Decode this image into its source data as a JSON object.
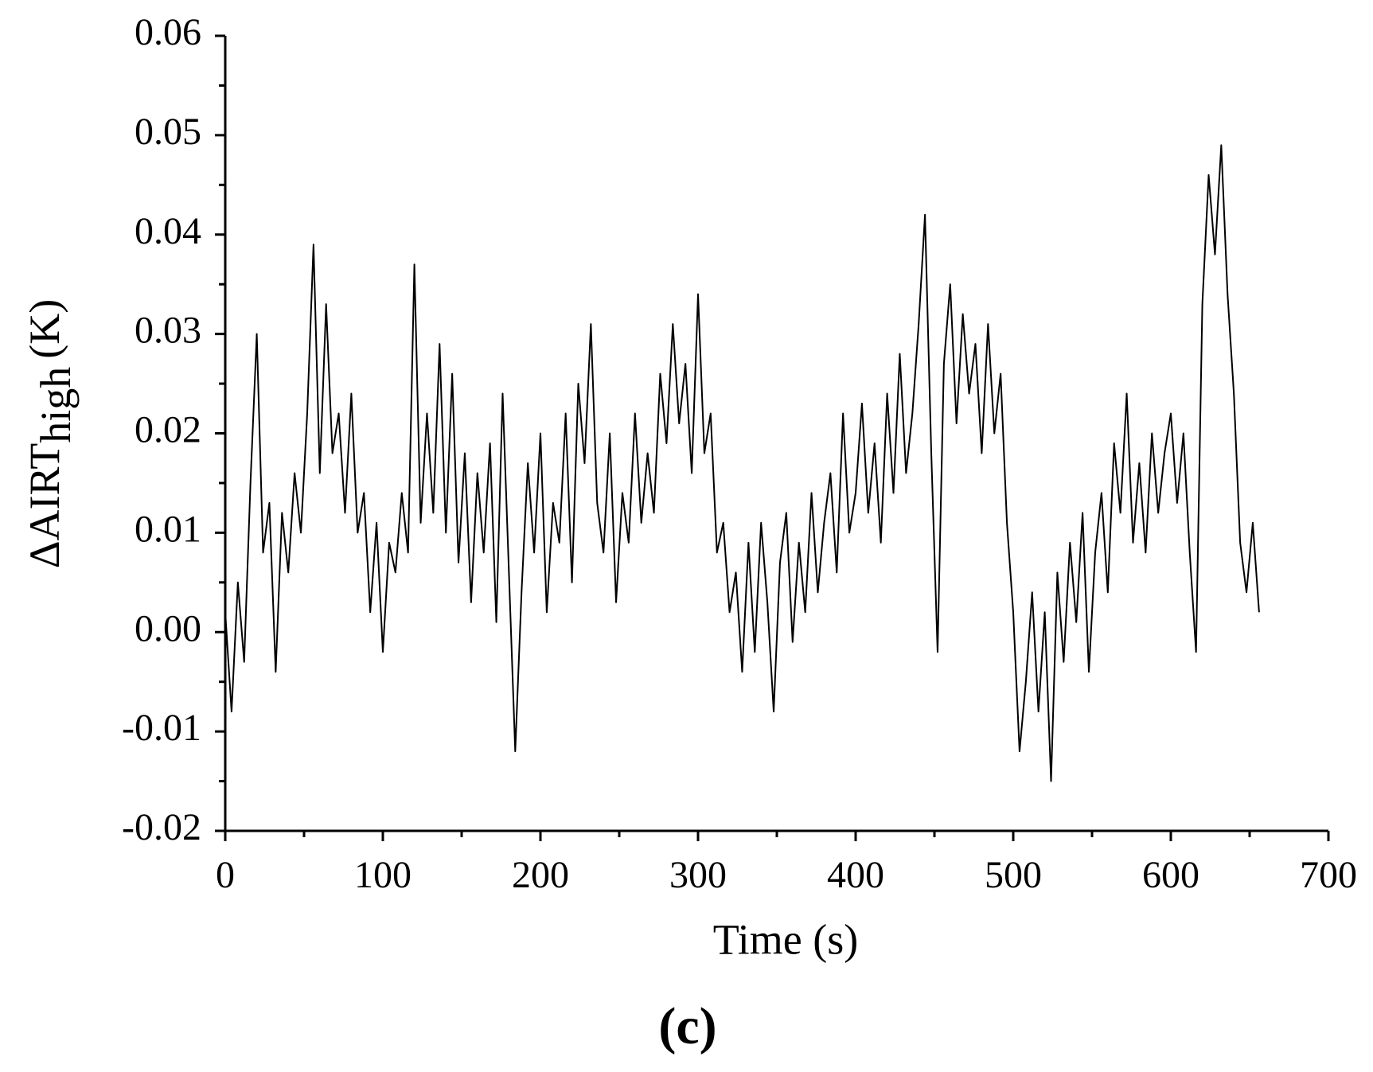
{
  "chart_data": {
    "type": "line",
    "xlabel": "Time (s)",
    "ylabel": "ΔAIRT",
    "ylabel_sub": "high",
    "ylabel_unit": "(K)",
    "caption": "(c)",
    "color": "#000000",
    "xlim": [
      0,
      700
    ],
    "xticks": [
      0,
      100,
      200,
      300,
      400,
      500,
      600,
      700
    ],
    "xminorticks": [
      50,
      150,
      250,
      350,
      450,
      550,
      650
    ],
    "ylim": [
      -0.02,
      0.06
    ],
    "yticks": [
      -0.02,
      -0.01,
      {
        "value": 0,
        "label": "0.00"
      },
      0.01,
      0.02,
      0.03,
      0.04,
      0.05,
      0.06
    ],
    "yminorticks": [
      -0.015,
      -0.005,
      0.005,
      0.015,
      0.025,
      0.035,
      0.045,
      0.055
    ],
    "x": [
      0,
      4,
      8,
      12,
      16,
      20,
      24,
      28,
      32,
      36,
      40,
      44,
      48,
      52,
      56,
      60,
      64,
      68,
      72,
      76,
      80,
      84,
      88,
      92,
      96,
      100,
      104,
      108,
      112,
      116,
      120,
      124,
      128,
      132,
      136,
      140,
      144,
      148,
      152,
      156,
      160,
      164,
      168,
      172,
      176,
      180,
      184,
      188,
      192,
      196,
      200,
      204,
      208,
      212,
      216,
      220,
      224,
      228,
      232,
      236,
      240,
      244,
      248,
      252,
      256,
      260,
      264,
      268,
      272,
      276,
      280,
      284,
      288,
      292,
      296,
      300,
      304,
      308,
      312,
      316,
      320,
      324,
      328,
      332,
      336,
      340,
      344,
      348,
      352,
      356,
      360,
      364,
      368,
      372,
      376,
      380,
      384,
      388,
      392,
      396,
      400,
      404,
      408,
      412,
      416,
      420,
      424,
      428,
      432,
      436,
      440,
      444,
      448,
      452,
      456,
      460,
      464,
      468,
      472,
      476,
      480,
      484,
      488,
      492,
      496,
      500,
      504,
      508,
      512,
      516,
      520,
      524,
      528,
      532,
      536,
      540,
      544,
      548,
      552,
      556,
      560,
      564,
      568,
      572,
      576,
      580,
      584,
      588,
      592,
      596,
      600,
      604,
      608,
      612,
      616,
      620,
      624,
      628,
      632,
      636,
      640,
      644,
      648,
      652,
      656
    ],
    "values": [
      0.002,
      -0.008,
      0.005,
      -0.003,
      0.015,
      0.03,
      0.008,
      0.013,
      -0.004,
      0.012,
      0.006,
      0.016,
      0.01,
      0.022,
      0.039,
      0.016,
      0.033,
      0.018,
      0.022,
      0.012,
      0.024,
      0.01,
      0.014,
      0.002,
      0.011,
      -0.002,
      0.009,
      0.006,
      0.014,
      0.008,
      0.037,
      0.011,
      0.022,
      0.012,
      0.029,
      0.01,
      0.026,
      0.007,
      0.018,
      0.003,
      0.016,
      0.008,
      0.019,
      0.001,
      0.024,
      0.006,
      -0.012,
      0.004,
      0.017,
      0.008,
      0.02,
      0.002,
      0.013,
      0.009,
      0.022,
      0.005,
      0.025,
      0.017,
      0.031,
      0.013,
      0.008,
      0.02,
      0.003,
      0.014,
      0.009,
      0.022,
      0.011,
      0.018,
      0.012,
      0.026,
      0.019,
      0.031,
      0.021,
      0.027,
      0.016,
      0.034,
      0.018,
      0.022,
      0.008,
      0.011,
      0.002,
      0.006,
      -0.004,
      0.009,
      -0.002,
      0.011,
      0.003,
      -0.008,
      0.007,
      0.012,
      -0.001,
      0.009,
      0.002,
      0.014,
      0.004,
      0.011,
      0.016,
      0.006,
      0.022,
      0.01,
      0.014,
      0.023,
      0.012,
      0.019,
      0.009,
      0.024,
      0.014,
      0.028,
      0.016,
      0.022,
      0.031,
      0.042,
      0.018,
      -0.002,
      0.027,
      0.035,
      0.021,
      0.032,
      0.024,
      0.029,
      0.018,
      0.031,
      0.02,
      0.026,
      0.011,
      0.002,
      -0.012,
      -0.005,
      0.004,
      -0.008,
      0.002,
      -0.015,
      0.006,
      -0.003,
      0.009,
      0.001,
      0.012,
      -0.004,
      0.008,
      0.014,
      0.004,
      0.019,
      0.012,
      0.024,
      0.009,
      0.017,
      0.008,
      0.02,
      0.012,
      0.018,
      0.022,
      0.013,
      0.02,
      0.008,
      -0.002,
      0.033,
      0.046,
      0.038,
      0.049,
      0.034,
      0.024,
      0.009,
      0.004,
      0.011,
      0.002
    ]
  }
}
